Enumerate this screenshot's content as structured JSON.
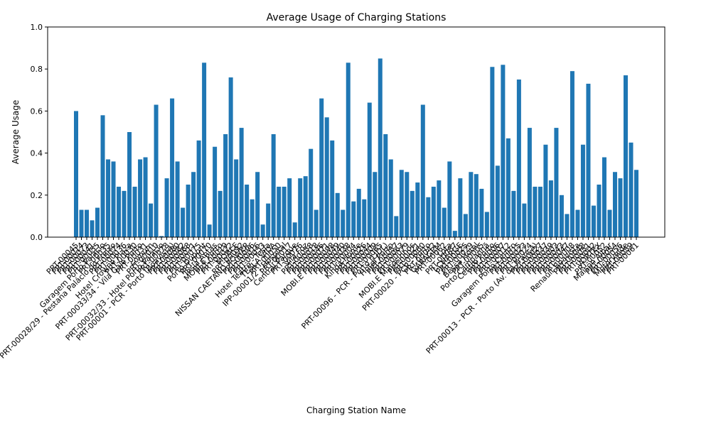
{
  "chart_data": {
    "type": "bar",
    "title": "Average Usage of Charging Stations",
    "x_label": "Charging Station Name",
    "y_label": "Average Usage",
    "color": "#1f77b4",
    "ylim": [
      0,
      1
    ],
    "yticks": [
      {
        "value": 0,
        "label": "0.0"
      },
      {
        "value": 0.2,
        "label": "0.2"
      },
      {
        "value": 0.4,
        "label": "0.4"
      },
      {
        "value": 0.6,
        "label": "0.6"
      },
      {
        "value": 0.8,
        "label": "0.8"
      },
      {
        "value": 1,
        "label": "1.0"
      }
    ],
    "categories": [
      "PRT-00045",
      "PRT-00014",
      "PRT-00073",
      "PRT-00041",
      "PRT-00055",
      "Garagem Porto Palácio",
      "PRT-00035",
      "PRT-00028/29 - Pestana Palácio do Freixo",
      "PRT-00074",
      "PRT-00036",
      "Hotel Crowne Plaza",
      "PRT-00030",
      "PRT-00033/34 - Vila Galé Porto",
      "PRT-00031",
      "comum",
      "PRT-00010",
      "PRT-00032/33 - Hotel Porto Palácio",
      "PRT-00078",
      "PRT-00001 - PCR - Porto (Boavista)",
      "PRT-00080",
      "PRT-00082",
      "PRT-00068",
      "PRT-00011",
      "PRT-00075",
      "Porto Dupont",
      "PRT-00070",
      "Tesla Antas",
      "MOBI.E Porto",
      "PRT-00019",
      "PRT-00022",
      "MOBI.E",
      "PRT-00092",
      "NISSAN CAETANO POWER",
      "PRT-00096",
      "PRT-00016",
      "PRT-00053",
      "Hotel Teatro - Tesla",
      "TESLA VIDA",
      "PRT-00050",
      "IPP-00001/2 - Hospital",
      "PRT-00017",
      "Central Parque",
      "PRT-00076",
      "Vila Foz",
      "PRT-00058",
      "PRT-00018",
      "PRT-00046",
      "PRT-00071",
      "MOBI.E PRT-00098",
      "PRT-00049",
      "PRT-00040",
      "PRT-00038",
      "PRT-00004",
      "Kinda Home",
      "PRT-00026",
      "PRT-00044",
      "PRT-00009",
      "PRT-00065",
      "PRT-00096 - PCR - Porto (LIDL)",
      "Hotel Porto",
      "PRT-00057",
      "PRT-00063",
      "PRT-00079",
      "MOBI.E Matosinhos",
      "PRT-00021",
      "PRT-00060",
      "PRT-00020 - PCR - Porto",
      "PRT-00042",
      "GARAGEM",
      "PRT-00062",
      "Lota",
      "PRT-00087",
      "I-CHARGE",
      "PRT-00025",
      "PRT-00029",
      "Bessa Hotel",
      "PRT-00005",
      "Porto Campanhã",
      "Centro Porto",
      "PRT-00006",
      "PRT-00007",
      "PRT-00012",
      "Garagem Porto Centro",
      "PRT-00015",
      "PRT-00023",
      "PRT-00024",
      "PRT-00013 - PCR - Porto (Av. da França)",
      "PRT-00027",
      "PRT-00037",
      "PRT-00039",
      "PRT-00003",
      "PRT-00043",
      "PRT-00047",
      "PRT-00008",
      "Renault Boavista",
      "PRT-00048",
      "PRT-00051",
      "PRT-00002",
      "VORTEX",
      "PRT-00052",
      "Maison Albar",
      "PRT-00054",
      "PRT-00056",
      "Motorvelde",
      "PRT-00059",
      "PRT-00061"
    ],
    "values": [
      0.6,
      0.13,
      0.13,
      0.08,
      0.14,
      0.58,
      0.37,
      0.36,
      0.24,
      0.22,
      0.5,
      0.24,
      0.37,
      0.38,
      0.16,
      0.63,
      0.005,
      0.28,
      0.66,
      0.36,
      0.14,
      0.25,
      0.31,
      0.46,
      0.83,
      0.06,
      0.43,
      0.22,
      0.49,
      0.76,
      0.37,
      0.52,
      0.25,
      0.18,
      0.31,
      0.06,
      0.16,
      0.49,
      0.24,
      0.24,
      0.28,
      0.07,
      0.28,
      0.29,
      0.42,
      0.13,
      0.66,
      0.57,
      0.46,
      0.21,
      0.13,
      0.83,
      0.17,
      0.23,
      0.18,
      0.64,
      0.31,
      0.85,
      0.49,
      0.37,
      0.1,
      0.32,
      0.31,
      0.22,
      0.26,
      0.63,
      0.19,
      0.24,
      0.27,
      0.14,
      0.36,
      0.03,
      0.28,
      0.11,
      0.31,
      0.3,
      0.23,
      0.12,
      0.81,
      0.34,
      0.82,
      0.47,
      0.22,
      0.75,
      0.16,
      0.52,
      0.24,
      0.24,
      0.44,
      0.27,
      0.52,
      0.2,
      0.11,
      0.79,
      0.13,
      0.44,
      0.73,
      0.15,
      0.25,
      0.38,
      0.13,
      0.31,
      0.28,
      0.77,
      0.45,
      0.32
    ]
  }
}
